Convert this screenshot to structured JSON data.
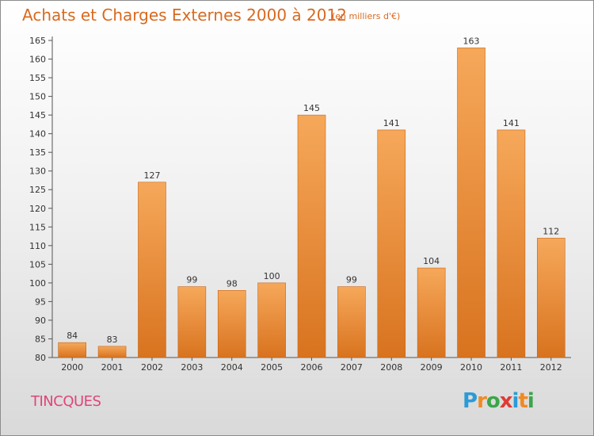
{
  "header": {
    "title": "Achats et Charges Externes 2000 à 2012",
    "unit": "(en milliers d'€)"
  },
  "footer": {
    "city": "TINCQUES",
    "logo": {
      "text": "Proxiti",
      "letters": [
        {
          "char": "P",
          "color": "#2b9bd6"
        },
        {
          "char": "r",
          "color": "#f08a24"
        },
        {
          "char": "o",
          "color": "#3aa648"
        },
        {
          "char": "x",
          "color": "#e03a35"
        },
        {
          "char": "i",
          "color": "#2b9bd6"
        },
        {
          "char": "t",
          "color": "#f08a24"
        },
        {
          "char": "i",
          "color": "#3aa648"
        }
      ]
    }
  },
  "colors": {
    "bar_top": "#f6a85a",
    "bar_bottom": "#d8731f",
    "accent": "#d9691f",
    "city": "#e0457a"
  },
  "chart_data": {
    "type": "bar",
    "title": "Achats et Charges Externes 2000 à 2012",
    "subtitle": "(en milliers d'€)",
    "categories": [
      "2000",
      "2001",
      "2002",
      "2003",
      "2004",
      "2005",
      "2006",
      "2007",
      "2008",
      "2009",
      "2010",
      "2011",
      "2012"
    ],
    "values": [
      84,
      83,
      127,
      99,
      98,
      100,
      145,
      99,
      141,
      104,
      163,
      141,
      112
    ],
    "ylim": [
      80,
      165
    ],
    "yticks": [
      80,
      85,
      90,
      95,
      100,
      105,
      110,
      115,
      120,
      125,
      130,
      135,
      140,
      145,
      150,
      155,
      160,
      165
    ],
    "grid": false,
    "xlabel": "",
    "ylabel": ""
  }
}
